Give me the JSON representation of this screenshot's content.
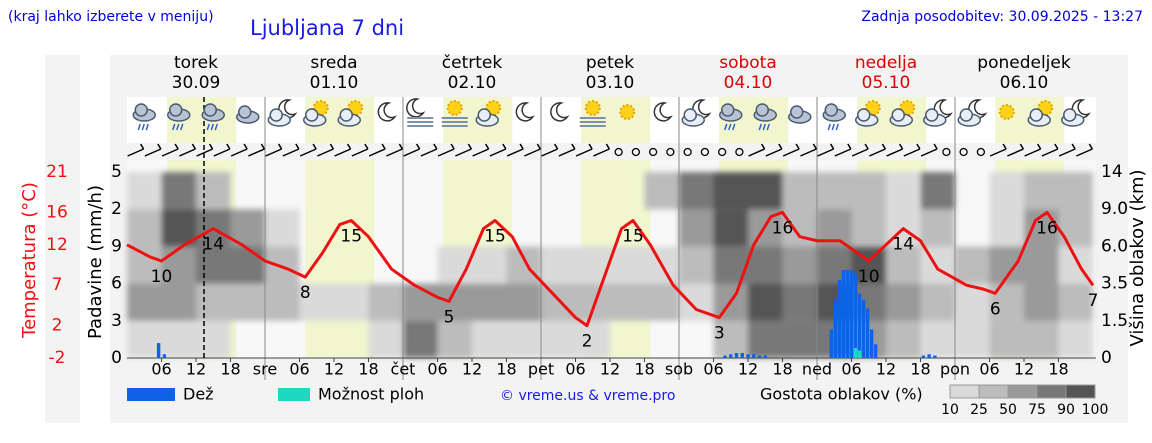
{
  "header": {
    "hint": "(kraj lahko izberete v meniju)",
    "title": "Ljubljana 7 dni",
    "updated": "Zadnja posodobitev: 30.09.2025 - 13:27"
  },
  "chart_data": {
    "type": "meteogram",
    "days": [
      {
        "name": "torek",
        "date": "30.09",
        "weekend": false
      },
      {
        "name": "sreda",
        "date": "01.10",
        "weekend": false
      },
      {
        "name": "četrtek",
        "date": "02.10",
        "weekend": false
      },
      {
        "name": "petek",
        "date": "03.10",
        "weekend": false
      },
      {
        "name": "sobota",
        "date": "04.10",
        "weekend": true
      },
      {
        "name": "nedelja",
        "date": "05.10",
        "weekend": true
      },
      {
        "name": "ponedeljek",
        "date": "06.10",
        "weekend": false
      }
    ],
    "weekend_color": "#dd0000",
    "xlim": [
      0,
      168
    ],
    "xticks": [
      {
        "value": 6,
        "label": "06"
      },
      {
        "value": 12,
        "label": "12"
      },
      {
        "value": 18,
        "label": "18"
      },
      {
        "value": 24,
        "label": "sre"
      },
      {
        "value": 30,
        "label": "06"
      },
      {
        "value": 36,
        "label": "12"
      },
      {
        "value": 42,
        "label": "18"
      },
      {
        "value": 48,
        "label": "čet"
      },
      {
        "value": 54,
        "label": "06"
      },
      {
        "value": 60,
        "label": "12"
      },
      {
        "value": 66,
        "label": "18"
      },
      {
        "value": 72,
        "label": "pet"
      },
      {
        "value": 78,
        "label": "06"
      },
      {
        "value": 84,
        "label": "12"
      },
      {
        "value": 90,
        "label": "18"
      },
      {
        "value": 96,
        "label": "sob"
      },
      {
        "value": 102,
        "label": "06"
      },
      {
        "value": 108,
        "label": "12"
      },
      {
        "value": 114,
        "label": "18"
      },
      {
        "value": 120,
        "label": "ned"
      },
      {
        "value": 126,
        "label": "06"
      },
      {
        "value": 132,
        "label": "12"
      },
      {
        "value": 138,
        "label": "18"
      },
      {
        "value": 144,
        "label": "pon"
      },
      {
        "value": 150,
        "label": "06"
      },
      {
        "value": 156,
        "label": "12"
      },
      {
        "value": 162,
        "label": "18"
      }
    ],
    "ylabel": "Padavine (mm/h)",
    "ylim": [
      0,
      15
    ],
    "yticks": [
      {
        "value": 15,
        "label": "5"
      },
      {
        "value": 12,
        "label": "2"
      },
      9,
      6,
      3,
      0
    ],
    "temp_axis": {
      "label": "Temperatura (°C)",
      "lim": [
        -2,
        21
      ],
      "ticks": [
        21,
        16,
        12,
        7,
        2,
        -2
      ],
      "color": "#ee1111"
    },
    "y2label": "Višina oblakov (km)",
    "y2ticks": [
      14,
      {
        "value": 9,
        "label": "9.0"
      },
      {
        "value": 6,
        "label": "6.0"
      },
      3.5,
      1.5,
      0
    ],
    "temperature": {
      "color": "#ee1111",
      "x": [
        0,
        4,
        6,
        10,
        15,
        20,
        24,
        28,
        31,
        34,
        37,
        39,
        42,
        46,
        50,
        54,
        56,
        59,
        62,
        64,
        67,
        70,
        74,
        78,
        80,
        83,
        86,
        88,
        91,
        95,
        99,
        103,
        106,
        109,
        112,
        114,
        117,
        120,
        124,
        127,
        129,
        132,
        135,
        138,
        141,
        146,
        149,
        151,
        155,
        158,
        160,
        163,
        166,
        168
      ],
      "values": [
        12,
        10.5,
        10,
        12,
        14,
        12,
        10,
        9,
        8,
        11,
        14.5,
        15,
        13,
        9,
        7,
        5.5,
        5,
        9,
        14,
        15,
        13,
        9,
        6,
        3,
        2,
        8,
        14,
        15,
        12,
        7,
        4,
        3,
        6,
        12,
        15.5,
        16,
        13,
        12.5,
        12.5,
        11,
        10,
        12,
        14,
        12.5,
        9,
        7,
        6.5,
        6,
        10,
        15,
        16,
        13,
        9,
        7
      ]
    },
    "temp_labels": {
      "x": [
        6,
        15,
        31,
        39,
        56,
        64,
        80,
        88,
        103,
        114,
        129,
        135,
        151,
        160,
        168
      ],
      "values": [
        10,
        14,
        8,
        15,
        5,
        15,
        2,
        15,
        3,
        16,
        10,
        14,
        6,
        16,
        7
      ]
    },
    "series": [
      {
        "name": "Dež",
        "color": "#1060e8",
        "x": [
          5.5,
          6.5,
          104,
          105,
          106,
          107,
          108,
          109,
          110,
          111,
          122.5,
          123.2,
          123.9,
          124.6,
          125.3,
          126,
          126.7,
          127.4,
          128.1,
          128.8,
          129.5,
          130.2,
          138.5,
          139.5,
          140.5
        ],
        "values": [
          1.2,
          0.3,
          0.2,
          0.3,
          0.4,
          0.4,
          0.3,
          0.3,
          0.2,
          0.2,
          2.3,
          4.7,
          6.3,
          7.1,
          7.1,
          7.1,
          6.8,
          5.2,
          4.7,
          4,
          2.3,
          1.1,
          0.2,
          0.3,
          0.2
        ]
      },
      {
        "name": "Možnost ploh",
        "color": "#20d8c0",
        "x": [
          126.7,
          127.4
        ],
        "values": [
          0.8,
          0.6
        ]
      }
    ],
    "clouds": {
      "title": "Gostota oblakov (%)",
      "levels": [
        10,
        25,
        50,
        75,
        90,
        100
      ],
      "level_colors": [
        "#dadada",
        "#bcbcbc",
        "#9a9a9a",
        "#787878",
        "#555555"
      ],
      "x": [
        0,
        6,
        12,
        18,
        24,
        30,
        36,
        42,
        48,
        54,
        60,
        66,
        72,
        78,
        84,
        90,
        96,
        102,
        108,
        114,
        120,
        126,
        132,
        138,
        144,
        150,
        156,
        162
      ],
      "density": [
        [
          10,
          50,
          25,
          25,
          10
        ],
        [
          10,
          50,
          50,
          90,
          75
        ],
        [
          10,
          25,
          75,
          75,
          25
        ],
        [
          0,
          25,
          75,
          50,
          0
        ],
        [
          0,
          25,
          25,
          10,
          0
        ],
        [
          0,
          10,
          0,
          0,
          0
        ],
        [
          0,
          10,
          0,
          0,
          0
        ],
        [
          10,
          25,
          0,
          0,
          0
        ],
        [
          75,
          50,
          0,
          0,
          0
        ],
        [
          25,
          50,
          10,
          0,
          0
        ],
        [
          10,
          50,
          10,
          0,
          0
        ],
        [
          10,
          50,
          25,
          0,
          0
        ],
        [
          10,
          25,
          10,
          0,
          0
        ],
        [
          10,
          25,
          10,
          0,
          0
        ],
        [
          0,
          25,
          10,
          0,
          0
        ],
        [
          0,
          25,
          10,
          0,
          25
        ],
        [
          0,
          10,
          25,
          50,
          75
        ],
        [
          25,
          50,
          75,
          90,
          90
        ],
        [
          75,
          90,
          75,
          50,
          90
        ],
        [
          75,
          75,
          50,
          25,
          25
        ],
        [
          75,
          90,
          75,
          50,
          25
        ],
        [
          50,
          75,
          90,
          25,
          25
        ],
        [
          25,
          50,
          25,
          10,
          10
        ],
        [
          10,
          25,
          10,
          25,
          75
        ],
        [
          10,
          10,
          25,
          0,
          0
        ],
        [
          25,
          25,
          50,
          10,
          10
        ],
        [
          25,
          50,
          50,
          50,
          25
        ],
        [
          10,
          25,
          10,
          25,
          25
        ]
      ]
    },
    "copyright": "© vreme.us & vreme.pro"
  }
}
